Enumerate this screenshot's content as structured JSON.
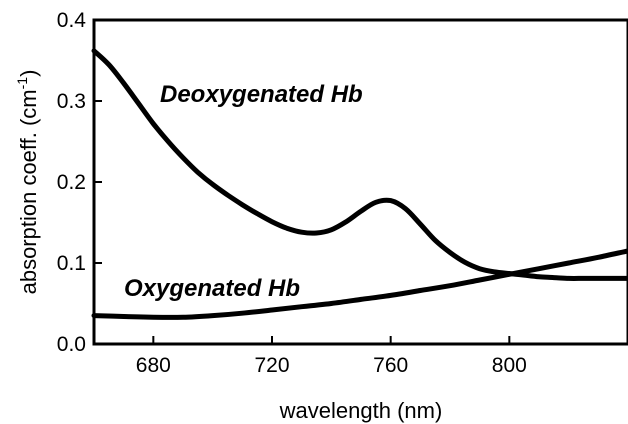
{
  "chart_data": {
    "type": "line",
    "title": "",
    "xlabel": "wavelength (nm)",
    "ylabel_main": "absorption coeff. (cm",
    "ylabel_exp": "-1",
    "ylabel_close": ")",
    "xlim": [
      660,
      840
    ],
    "ylim": [
      0.0,
      0.4
    ],
    "x_ticks": [
      680,
      720,
      760,
      800
    ],
    "x_tick_labels": [
      "680",
      "720",
      "760",
      "800"
    ],
    "y_ticks": [
      0.0,
      0.1,
      0.2,
      0.3,
      0.4
    ],
    "y_tick_labels": [
      "0.0",
      "0.1",
      "0.2",
      "0.3",
      "0.4"
    ],
    "grid": false,
    "annotations": [
      "Deoxygenated Hb",
      "Oxygenated Hb"
    ],
    "series": [
      {
        "x": [
          660,
          665,
          670,
          675,
          680,
          685,
          690,
          695,
          700,
          705,
          710,
          715,
          720,
          725,
          730,
          735,
          740,
          745,
          750,
          755,
          760,
          765,
          770,
          775,
          780,
          785,
          790,
          795,
          800,
          805,
          810,
          815,
          820,
          825,
          830,
          835,
          840
        ],
        "values": [
          0.362,
          0.345,
          0.322,
          0.297,
          0.272,
          0.25,
          0.23,
          0.212,
          0.197,
          0.184,
          0.172,
          0.161,
          0.151,
          0.143,
          0.138,
          0.137,
          0.141,
          0.151,
          0.164,
          0.175,
          0.177,
          0.167,
          0.148,
          0.128,
          0.113,
          0.101,
          0.093,
          0.089,
          0.087,
          0.085,
          0.083,
          0.082,
          0.081,
          0.081,
          0.081,
          0.081,
          0.081
        ]
      },
      {
        "x": [
          660,
          670,
          680,
          690,
          700,
          710,
          720,
          730,
          740,
          750,
          760,
          770,
          780,
          790,
          800,
          810,
          820,
          830,
          840
        ],
        "values": [
          0.035,
          0.034,
          0.033,
          0.033,
          0.035,
          0.038,
          0.042,
          0.046,
          0.05,
          0.055,
          0.06,
          0.066,
          0.072,
          0.079,
          0.086,
          0.093,
          0.1,
          0.107,
          0.115
        ]
      }
    ]
  }
}
